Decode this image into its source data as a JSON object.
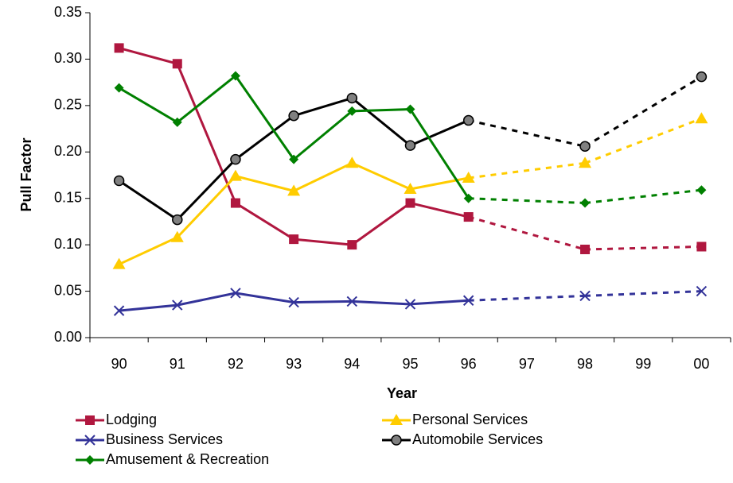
{
  "chart_data": {
    "type": "line",
    "x_label": "Year",
    "y_label": "Pull Factor",
    "categories": [
      "90",
      "91",
      "92",
      "93",
      "94",
      "95",
      "96",
      "97",
      "98",
      "99",
      "00"
    ],
    "series": [
      {
        "name": "Lodging",
        "color": "#b0173f",
        "marker": "square",
        "values": [
          0.312,
          0.295,
          0.145,
          0.106,
          0.1,
          0.145,
          0.13,
          null,
          0.095,
          null,
          0.098
        ]
      },
      {
        "name": "Personal Services",
        "color": "#ffcc00",
        "marker": "triangle",
        "values": [
          0.079,
          0.108,
          0.174,
          0.158,
          0.188,
          0.16,
          0.172,
          null,
          0.188,
          null,
          0.236
        ]
      },
      {
        "name": "Business Services",
        "color": "#333399",
        "marker": "x",
        "values": [
          0.029,
          0.035,
          0.048,
          0.038,
          0.039,
          0.036,
          0.04,
          null,
          0.045,
          null,
          0.05
        ]
      },
      {
        "name": "Automobile Services",
        "color": "#000000",
        "marker": "circle",
        "values": [
          0.169,
          0.127,
          0.192,
          0.239,
          0.258,
          0.207,
          0.234,
          null,
          0.206,
          null,
          0.281
        ]
      },
      {
        "name": "Amusement & Recreation",
        "color": "#008000",
        "marker": "diamond",
        "values": [
          0.269,
          0.232,
          0.282,
          0.192,
          0.244,
          0.246,
          0.15,
          null,
          0.145,
          null,
          0.159
        ]
      }
    ],
    "gaps": "dashed",
    "ylim": [
      0,
      0.35
    ],
    "yticks": [
      {
        "value": 0,
        "label": "0.00"
      },
      {
        "value": 0.05,
        "label": "0.05"
      },
      {
        "value": 0.1,
        "label": "0.10"
      },
      {
        "value": 0.15,
        "label": "0.15"
      },
      {
        "value": 0.2,
        "label": "0.20"
      },
      {
        "value": 0.25,
        "label": "0.25"
      },
      {
        "value": 0.3,
        "label": "0.30"
      },
      {
        "value": 0.35,
        "label": "0.35"
      }
    ],
    "grid": false
  }
}
